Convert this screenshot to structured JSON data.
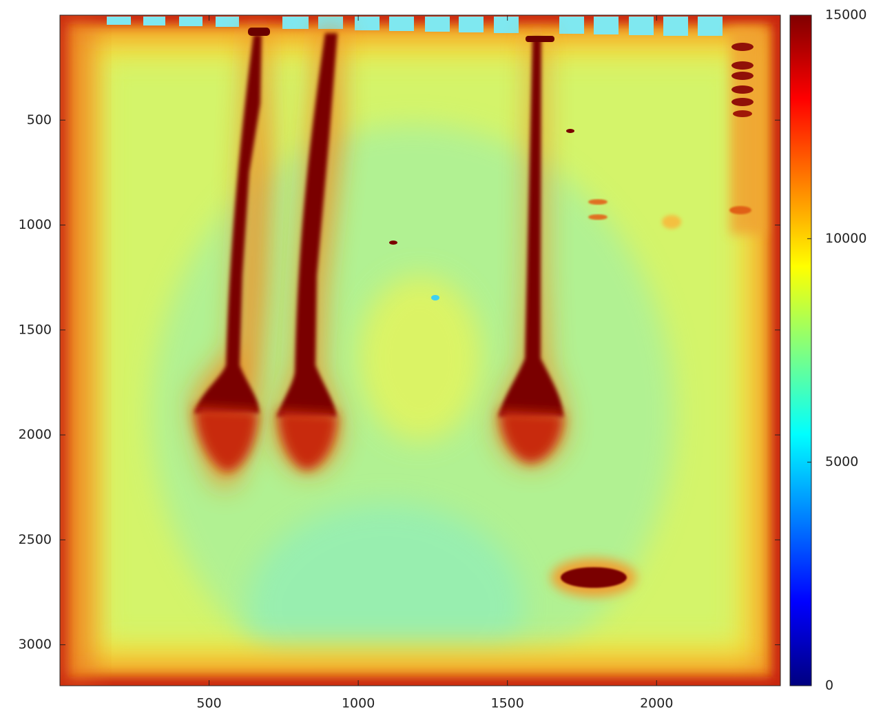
{
  "chart_data": {
    "type": "heatmap",
    "colormap": "jet",
    "y_direction": "reverse",
    "xlim": [
      0,
      2415
    ],
    "ylim": [
      0,
      3195
    ],
    "xticks": [
      500,
      1000,
      1500,
      2000
    ],
    "yticks": [
      500,
      1000,
      1500,
      2000,
      2500,
      3000
    ],
    "colorbar": {
      "lim": [
        0,
        15000
      ],
      "ticks": [
        0,
        5000,
        10000,
        15000
      ]
    }
  }
}
